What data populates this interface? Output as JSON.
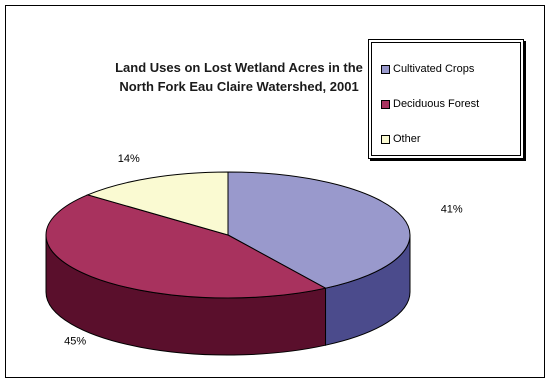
{
  "chart_data": {
    "type": "pie",
    "style": "3d",
    "title_lines": [
      "Land Uses on Lost Wetland Acres in the",
      "North Fork Eau Claire Watershed, 2001"
    ],
    "categories": [
      "Cultivated Crops",
      "Deciduous Forest",
      "Other"
    ],
    "values": [
      41,
      45,
      14
    ],
    "labels": [
      "41%",
      "45%",
      "14%"
    ],
    "colors": {
      "top": [
        "#9999cc",
        "#a8325e",
        "#fafad2"
      ],
      "side": [
        "#4b4b8c",
        "#5a0f2c",
        "#a8a878"
      ]
    },
    "legend_position": "top-right"
  }
}
